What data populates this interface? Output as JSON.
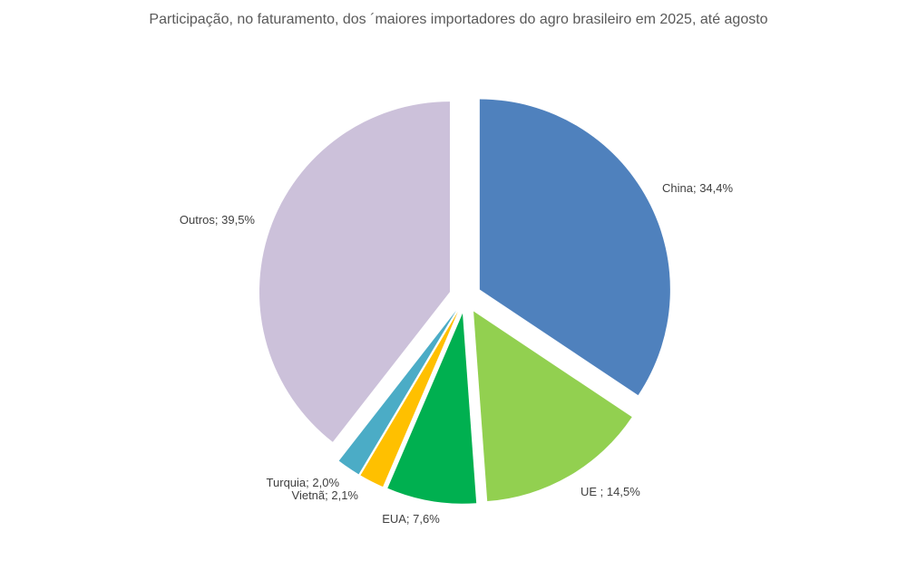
{
  "chart_data": {
    "type": "pie",
    "title": "Participação, no faturamento, dos ´maiores importadores do agro brasileiro em 2025, até agosto",
    "exploded": true,
    "slices": [
      {
        "label": "China",
        "value": 34.4,
        "display": "China; 34,4%",
        "color": "#4F81BD"
      },
      {
        "label": "UE",
        "value": 14.5,
        "display": "UE ; 14,5%",
        "color": "#92D050"
      },
      {
        "label": "EUA",
        "value": 7.6,
        "display": "EUA; 7,6%",
        "color": "#00B050"
      },
      {
        "label": "Vietnã",
        "value": 2.1,
        "display": "Vietnã; 2,1%",
        "color": "#FFC000"
      },
      {
        "label": "Turquia",
        "value": 2.0,
        "display": "Turquia; 2,0%",
        "color": "#4BACC6"
      },
      {
        "label": "Outros",
        "value": 39.5,
        "display": "Outros; 39,5%",
        "color": "#CCC1DA"
      }
    ]
  }
}
